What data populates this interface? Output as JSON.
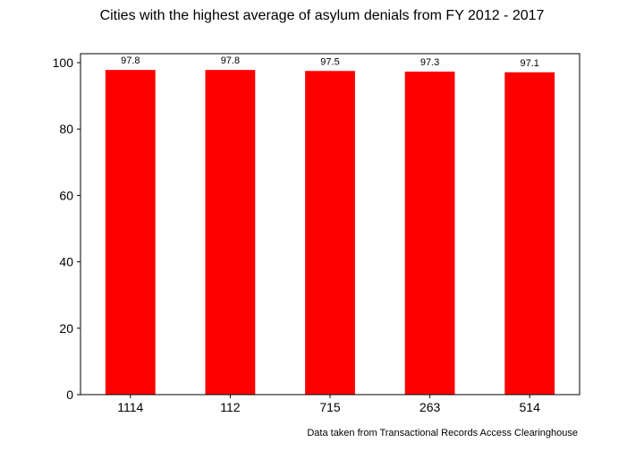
{
  "chart_data": {
    "type": "bar",
    "title": "Cities with the highest average of asylum denials from FY 2012 - 2017",
    "xlabel": "",
    "ylabel": "",
    "categories": [
      "1114",
      "112",
      "715",
      "263",
      "514"
    ],
    "values": [
      97.8,
      97.8,
      97.5,
      97.3,
      97.1
    ],
    "data_labels": [
      "97.8",
      "97.8",
      "97.5",
      "97.3",
      "97.1"
    ],
    "ylim": [
      0,
      102.7
    ],
    "yticks": [
      0,
      20,
      40,
      60,
      80,
      100
    ],
    "bar_color": "#ff0000",
    "grid": false,
    "legend": "none",
    "footnote": "Data taken from Transactional Records Access Clearinghouse"
  }
}
